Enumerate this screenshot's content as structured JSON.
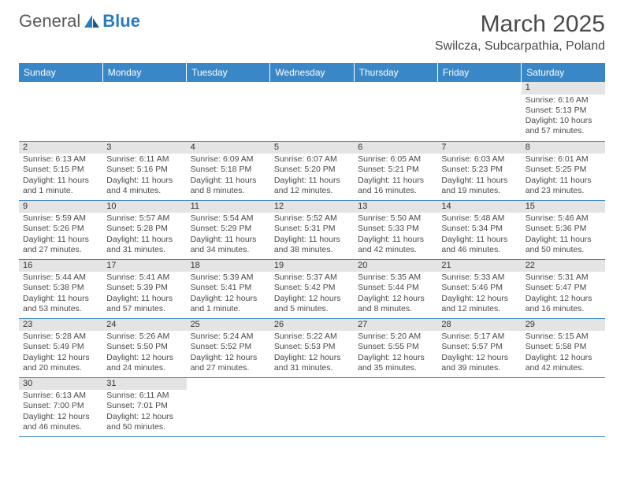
{
  "logo": {
    "text1": "General",
    "text2": "Blue"
  },
  "title": "March 2025",
  "location": "Swilcza, Subcarpathia, Poland",
  "colors": {
    "header_bg": "#3a87c8",
    "header_fg": "#ffffff",
    "daynum_bg": "#e4e4e4",
    "border": "#3a87c8",
    "text": "#4a4a4a",
    "logo_blue": "#2b7bbf"
  },
  "days_of_week": [
    "Sunday",
    "Monday",
    "Tuesday",
    "Wednesday",
    "Thursday",
    "Friday",
    "Saturday"
  ],
  "weeks": [
    [
      null,
      null,
      null,
      null,
      null,
      null,
      {
        "n": "1",
        "sr": "6:16 AM",
        "ss": "5:13 PM",
        "dl": "10 hours and 57 minutes."
      }
    ],
    [
      {
        "n": "2",
        "sr": "6:13 AM",
        "ss": "5:15 PM",
        "dl": "11 hours and 1 minute."
      },
      {
        "n": "3",
        "sr": "6:11 AM",
        "ss": "5:16 PM",
        "dl": "11 hours and 4 minutes."
      },
      {
        "n": "4",
        "sr": "6:09 AM",
        "ss": "5:18 PM",
        "dl": "11 hours and 8 minutes."
      },
      {
        "n": "5",
        "sr": "6:07 AM",
        "ss": "5:20 PM",
        "dl": "11 hours and 12 minutes."
      },
      {
        "n": "6",
        "sr": "6:05 AM",
        "ss": "5:21 PM",
        "dl": "11 hours and 16 minutes."
      },
      {
        "n": "7",
        "sr": "6:03 AM",
        "ss": "5:23 PM",
        "dl": "11 hours and 19 minutes."
      },
      {
        "n": "8",
        "sr": "6:01 AM",
        "ss": "5:25 PM",
        "dl": "11 hours and 23 minutes."
      }
    ],
    [
      {
        "n": "9",
        "sr": "5:59 AM",
        "ss": "5:26 PM",
        "dl": "11 hours and 27 minutes."
      },
      {
        "n": "10",
        "sr": "5:57 AM",
        "ss": "5:28 PM",
        "dl": "11 hours and 31 minutes."
      },
      {
        "n": "11",
        "sr": "5:54 AM",
        "ss": "5:29 PM",
        "dl": "11 hours and 34 minutes."
      },
      {
        "n": "12",
        "sr": "5:52 AM",
        "ss": "5:31 PM",
        "dl": "11 hours and 38 minutes."
      },
      {
        "n": "13",
        "sr": "5:50 AM",
        "ss": "5:33 PM",
        "dl": "11 hours and 42 minutes."
      },
      {
        "n": "14",
        "sr": "5:48 AM",
        "ss": "5:34 PM",
        "dl": "11 hours and 46 minutes."
      },
      {
        "n": "15",
        "sr": "5:46 AM",
        "ss": "5:36 PM",
        "dl": "11 hours and 50 minutes."
      }
    ],
    [
      {
        "n": "16",
        "sr": "5:44 AM",
        "ss": "5:38 PM",
        "dl": "11 hours and 53 minutes."
      },
      {
        "n": "17",
        "sr": "5:41 AM",
        "ss": "5:39 PM",
        "dl": "11 hours and 57 minutes."
      },
      {
        "n": "18",
        "sr": "5:39 AM",
        "ss": "5:41 PM",
        "dl": "12 hours and 1 minute."
      },
      {
        "n": "19",
        "sr": "5:37 AM",
        "ss": "5:42 PM",
        "dl": "12 hours and 5 minutes."
      },
      {
        "n": "20",
        "sr": "5:35 AM",
        "ss": "5:44 PM",
        "dl": "12 hours and 8 minutes."
      },
      {
        "n": "21",
        "sr": "5:33 AM",
        "ss": "5:46 PM",
        "dl": "12 hours and 12 minutes."
      },
      {
        "n": "22",
        "sr": "5:31 AM",
        "ss": "5:47 PM",
        "dl": "12 hours and 16 minutes."
      }
    ],
    [
      {
        "n": "23",
        "sr": "5:28 AM",
        "ss": "5:49 PM",
        "dl": "12 hours and 20 minutes."
      },
      {
        "n": "24",
        "sr": "5:26 AM",
        "ss": "5:50 PM",
        "dl": "12 hours and 24 minutes."
      },
      {
        "n": "25",
        "sr": "5:24 AM",
        "ss": "5:52 PM",
        "dl": "12 hours and 27 minutes."
      },
      {
        "n": "26",
        "sr": "5:22 AM",
        "ss": "5:53 PM",
        "dl": "12 hours and 31 minutes."
      },
      {
        "n": "27",
        "sr": "5:20 AM",
        "ss": "5:55 PM",
        "dl": "12 hours and 35 minutes."
      },
      {
        "n": "28",
        "sr": "5:17 AM",
        "ss": "5:57 PM",
        "dl": "12 hours and 39 minutes."
      },
      {
        "n": "29",
        "sr": "5:15 AM",
        "ss": "5:58 PM",
        "dl": "12 hours and 42 minutes."
      }
    ],
    [
      {
        "n": "30",
        "sr": "6:13 AM",
        "ss": "7:00 PM",
        "dl": "12 hours and 46 minutes."
      },
      {
        "n": "31",
        "sr": "6:11 AM",
        "ss": "7:01 PM",
        "dl": "12 hours and 50 minutes."
      },
      null,
      null,
      null,
      null,
      null
    ]
  ],
  "labels": {
    "sunrise": "Sunrise:",
    "sunset": "Sunset:",
    "daylight": "Daylight:"
  }
}
